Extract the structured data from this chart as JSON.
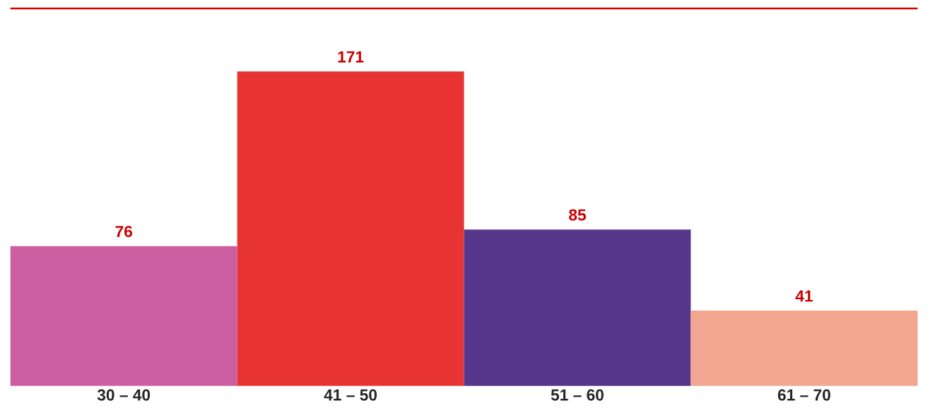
{
  "chart_data": {
    "type": "bar",
    "categories": [
      "30 – 40",
      "41 – 50",
      "51 – 60",
      "61 – 70"
    ],
    "values": [
      76,
      171,
      85,
      41
    ],
    "colors": [
      "#cc5fa2",
      "#e73331",
      "#55368b",
      "#f3a68f"
    ],
    "data_labels": true
  }
}
